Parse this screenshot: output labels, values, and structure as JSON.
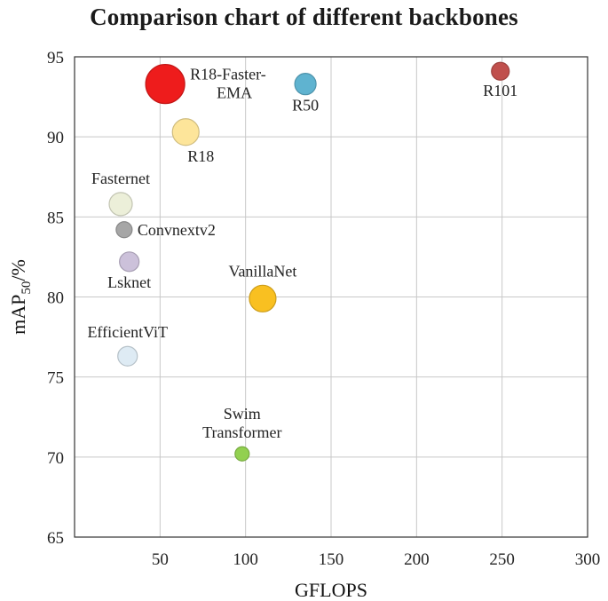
{
  "chart_data": {
    "type": "scatter",
    "title": "Comparison chart of different backbones",
    "xlabel": "GFLOPS",
    "ylabel": {
      "main": "mAP",
      "sub": "50",
      "suffix": "/%"
    },
    "xlim": [
      0,
      300
    ],
    "ylim": [
      65,
      95
    ],
    "xticks": [
      50,
      100,
      150,
      200,
      250,
      300
    ],
    "yticks": [
      65,
      70,
      75,
      80,
      85,
      90,
      95
    ],
    "grid": true,
    "points": [
      {
        "name": "R18-Faster-EMA",
        "lines": [
          "R18-Faster-",
          "EMA"
        ],
        "x": 53,
        "y": 93.3,
        "size": 22,
        "color": "#ee1c1c",
        "label_pos": "right"
      },
      {
        "name": "R50",
        "lines": [
          "R50"
        ],
        "x": 135,
        "y": 93.3,
        "size": 12,
        "color": "#5fb3d0",
        "label_pos": "below"
      },
      {
        "name": "R101",
        "lines": [
          "R101"
        ],
        "x": 249,
        "y": 94.1,
        "size": 10,
        "color": "#c0504d",
        "label_pos": "below"
      },
      {
        "name": "R18",
        "lines": [
          "R18"
        ],
        "x": 65,
        "y": 90.3,
        "size": 15,
        "color": "#fde59a",
        "label_pos": "below-right"
      },
      {
        "name": "Fasternet",
        "lines": [
          "Fasternet"
        ],
        "x": 27,
        "y": 85.8,
        "size": 13,
        "color": "#ecefd9",
        "label_pos": "above"
      },
      {
        "name": "Convnextv2",
        "lines": [
          "Convnextv2"
        ],
        "x": 29,
        "y": 84.2,
        "size": 9,
        "color": "#a6a6a6",
        "label_pos": "right"
      },
      {
        "name": "Lsknet",
        "lines": [
          "Lsknet"
        ],
        "x": 32,
        "y": 82.2,
        "size": 11,
        "color": "#ccc1da",
        "label_pos": "below"
      },
      {
        "name": "VanillaNet",
        "lines": [
          "VanillaNet"
        ],
        "x": 110,
        "y": 79.9,
        "size": 15,
        "color": "#f9c021",
        "label_pos": "above"
      },
      {
        "name": "EfficientViT",
        "lines": [
          "EfficientViT"
        ],
        "x": 31,
        "y": 76.3,
        "size": 11,
        "color": "#deebf4",
        "label_pos": "above"
      },
      {
        "name": "Swim Transformer",
        "lines": [
          "Swim",
          "Transformer"
        ],
        "x": 98,
        "y": 70.2,
        "size": 8,
        "color": "#92d050",
        "label_pos": "above"
      }
    ]
  }
}
